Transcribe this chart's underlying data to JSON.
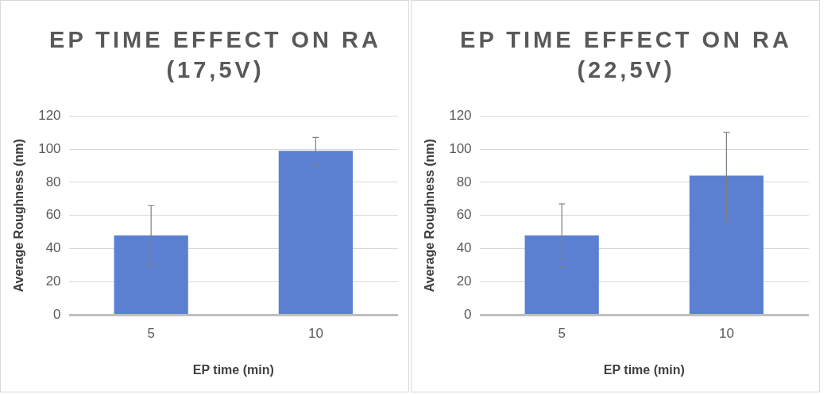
{
  "chart_data": [
    {
      "type": "bar",
      "title": "EP TIME EFFECT ON RA (17,5V)",
      "xlabel": "EP time (min)",
      "ylabel": "Average Roughness (nm)",
      "categories": [
        "5",
        "10"
      ],
      "series": [
        {
          "color": "#5b80d2",
          "values": [
            48,
            99
          ],
          "errors": [
            [
              30,
              66
            ],
            [
              91,
              107
            ]
          ]
        }
      ],
      "ylim": [
        0,
        120
      ],
      "yticks": [
        0,
        20,
        40,
        60,
        80,
        100,
        120
      ],
      "grid": "y",
      "legend": false
    },
    {
      "type": "bar",
      "title": "EP TIME EFFECT ON RA (22,5V)",
      "xlabel": "EP time (min)",
      "ylabel": "Average Roughness (nm)",
      "categories": [
        "5",
        "10"
      ],
      "series": [
        {
          "color": "#5b80d2",
          "values": [
            48,
            84
          ],
          "errors": [
            [
              29,
              67
            ],
            [
              57,
              110
            ]
          ]
        }
      ],
      "ylim": [
        0,
        120
      ],
      "yticks": [
        0,
        20,
        40,
        60,
        80,
        100,
        120
      ],
      "grid": "y",
      "legend": false
    }
  ]
}
